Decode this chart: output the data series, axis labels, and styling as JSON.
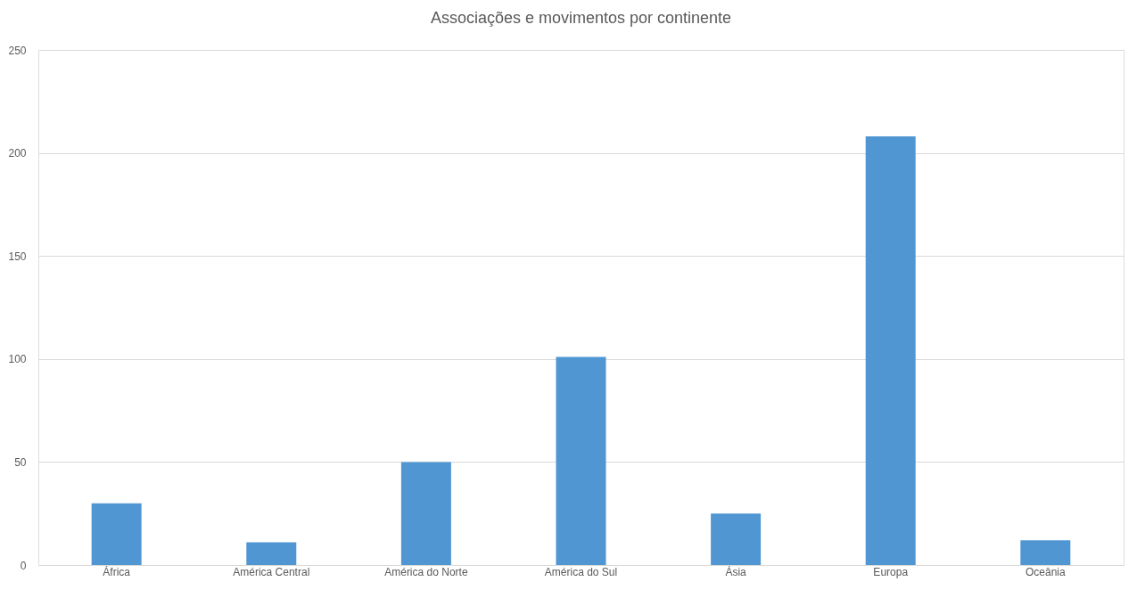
{
  "chart_data": {
    "type": "bar",
    "title": "Associações e movimentos por continente",
    "categories": [
      "África",
      "América Central",
      "América do Norte",
      "América do Sul",
      "Ásia",
      "Europa",
      "Oceânia"
    ],
    "values": [
      30,
      11,
      50,
      101,
      25,
      208,
      12
    ],
    "color": "#5096d2",
    "ylim": [
      0,
      250
    ],
    "yticks": [
      0,
      50,
      100,
      150,
      200,
      250
    ],
    "grid": "y"
  }
}
